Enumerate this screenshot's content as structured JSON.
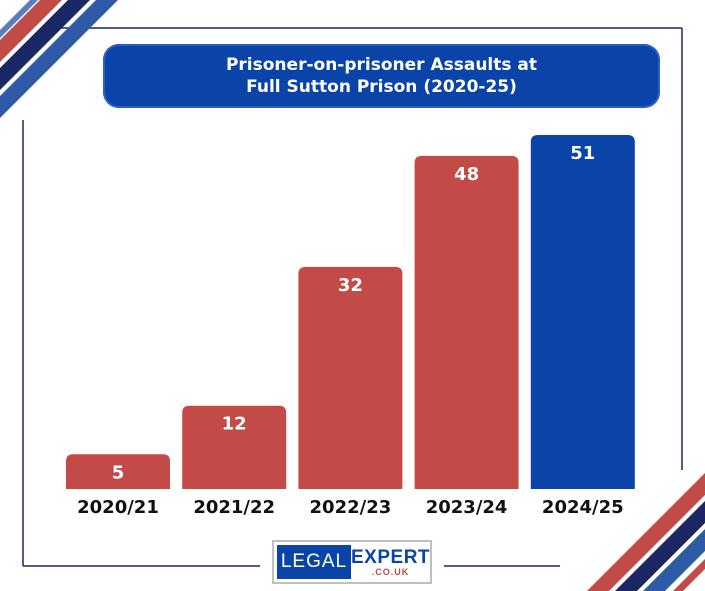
{
  "title_lines": [
    "Prisoner-on-prisoner Assaults at",
    "Full Sutton Prison (2020-25)"
  ],
  "colors": {
    "red": "#c24b48",
    "blue": "#0b44a8",
    "navy": "#1b2763",
    "label": "#111111"
  },
  "chart_data": {
    "type": "bar",
    "title": "Prisoner-on-prisoner Assaults at Full Sutton Prison (2020-25)",
    "categories": [
      "2020/21",
      "2021/22",
      "2022/23",
      "2023/24",
      "2024/25"
    ],
    "values": [
      5,
      12,
      32,
      48,
      51
    ],
    "bar_colors": [
      "#c24b48",
      "#c24b48",
      "#c24b48",
      "#c24b48",
      "#0b44a8"
    ],
    "data_labels": [
      "5",
      "12",
      "32",
      "48",
      "51"
    ],
    "xlabel": "",
    "ylabel": "",
    "ylim": [
      0,
      51
    ],
    "grid": false,
    "legend": "none"
  },
  "logo": {
    "left": "LEGAL",
    "right": "EXPERT",
    "sub": ".CO.UK"
  }
}
